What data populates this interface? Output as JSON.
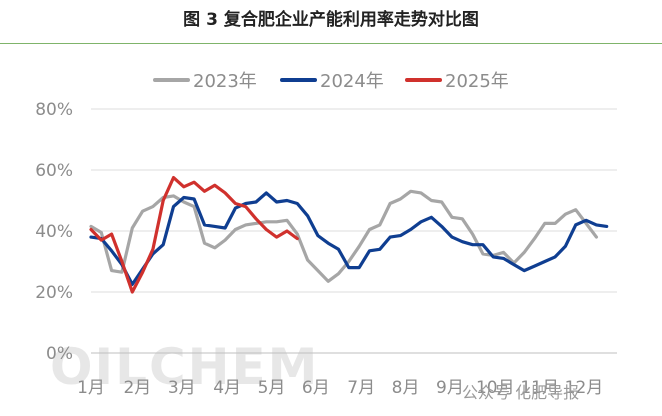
{
  "title": "图 3  复合肥企业产能利用率走势对比图",
  "watermark": "OILCHEM",
  "source_note": "公众号 化肥导报",
  "chart_data": {
    "type": "line",
    "title": "图 3  复合肥企业产能利用率走势对比图",
    "xlabel": "",
    "ylabel": "",
    "y_unit": "%",
    "ylim": [
      0,
      80
    ],
    "yticks": [
      0,
      20,
      40,
      60,
      80
    ],
    "ytick_labels": [
      "0%",
      "20%",
      "40%",
      "60%",
      "80%"
    ],
    "xlim": [
      1,
      52
    ],
    "x_unit": "week",
    "month_labels": [
      "1月",
      "2月",
      "3月",
      "4月",
      "5月",
      "6月",
      "7月",
      "8月",
      "9月",
      "10月",
      "11月",
      "12月"
    ],
    "month_label_weeks": [
      1,
      5.5,
      9.8,
      14.2,
      18.5,
      22.8,
      27.2,
      31.5,
      35.8,
      40.2,
      44.5,
      48.8
    ],
    "grid": "horizontal",
    "legend_position": "top",
    "series": [
      {
        "name": "2023年",
        "color": "#a6a6a6",
        "x": [
          1,
          2,
          3,
          4,
          5,
          6,
          7,
          8,
          9,
          10,
          11,
          12,
          13,
          14,
          15,
          16,
          17,
          18,
          19,
          20,
          21,
          22,
          23,
          24,
          25,
          26,
          27,
          28,
          29,
          30,
          31,
          32,
          33,
          34,
          35,
          36,
          37,
          38,
          39,
          40,
          41,
          42,
          43,
          44,
          45,
          46,
          47,
          48,
          49,
          50,
          51,
          52
        ],
        "values": [
          41.5,
          39.5,
          27,
          26.5,
          41,
          46.5,
          48,
          51,
          51.5,
          49.5,
          48,
          36,
          34.5,
          37,
          40.5,
          42,
          42.5,
          43,
          43,
          43.5,
          39,
          30.5,
          27,
          23.5,
          26,
          30,
          35,
          40.5,
          42,
          49,
          50.5,
          53,
          52.5,
          50,
          49.5,
          44.5,
          44,
          39,
          32.5,
          32,
          33,
          29.5,
          33,
          37.5,
          42.5,
          42.5,
          45.5,
          47,
          42.5,
          38,
          null,
          null
        ]
      },
      {
        "name": "2024年",
        "color": "#0f3e91",
        "x": [
          1,
          2,
          3,
          4,
          5,
          6,
          7,
          8,
          9,
          10,
          11,
          12,
          13,
          14,
          15,
          16,
          17,
          18,
          19,
          20,
          21,
          22,
          23,
          24,
          25,
          26,
          27,
          28,
          29,
          30,
          31,
          32,
          33,
          34,
          35,
          36,
          37,
          38,
          39,
          40,
          41,
          42,
          43,
          44,
          45,
          46,
          47,
          48,
          49,
          50,
          51,
          52
        ],
        "values": [
          38,
          37.5,
          33.5,
          29,
          22.5,
          27.5,
          32.5,
          35.5,
          48,
          51,
          50.5,
          42,
          41.5,
          41,
          47.5,
          49,
          49.5,
          52.5,
          49.5,
          50,
          49,
          45,
          38.5,
          36,
          34,
          28,
          28,
          33.5,
          34,
          38,
          38.5,
          40.5,
          43,
          44.5,
          41.5,
          38,
          36.5,
          35.5,
          35.5,
          31.5,
          31,
          29,
          27,
          28.5,
          30,
          31.5,
          35,
          42,
          43.5,
          42,
          41.5,
          null
        ]
      },
      {
        "name": "2025年",
        "color": "#d0312d",
        "x": [
          1,
          2,
          3,
          4,
          5,
          6,
          7,
          8,
          9,
          10,
          11,
          12,
          13,
          14,
          15,
          16,
          17,
          18,
          19,
          20,
          21
        ],
        "values": [
          40.5,
          37,
          39,
          30,
          20,
          26.5,
          34,
          50,
          57.5,
          54.5,
          56,
          53,
          55,
          52.5,
          49,
          48,
          44,
          40.5,
          38,
          40,
          37.5
        ]
      }
    ]
  }
}
